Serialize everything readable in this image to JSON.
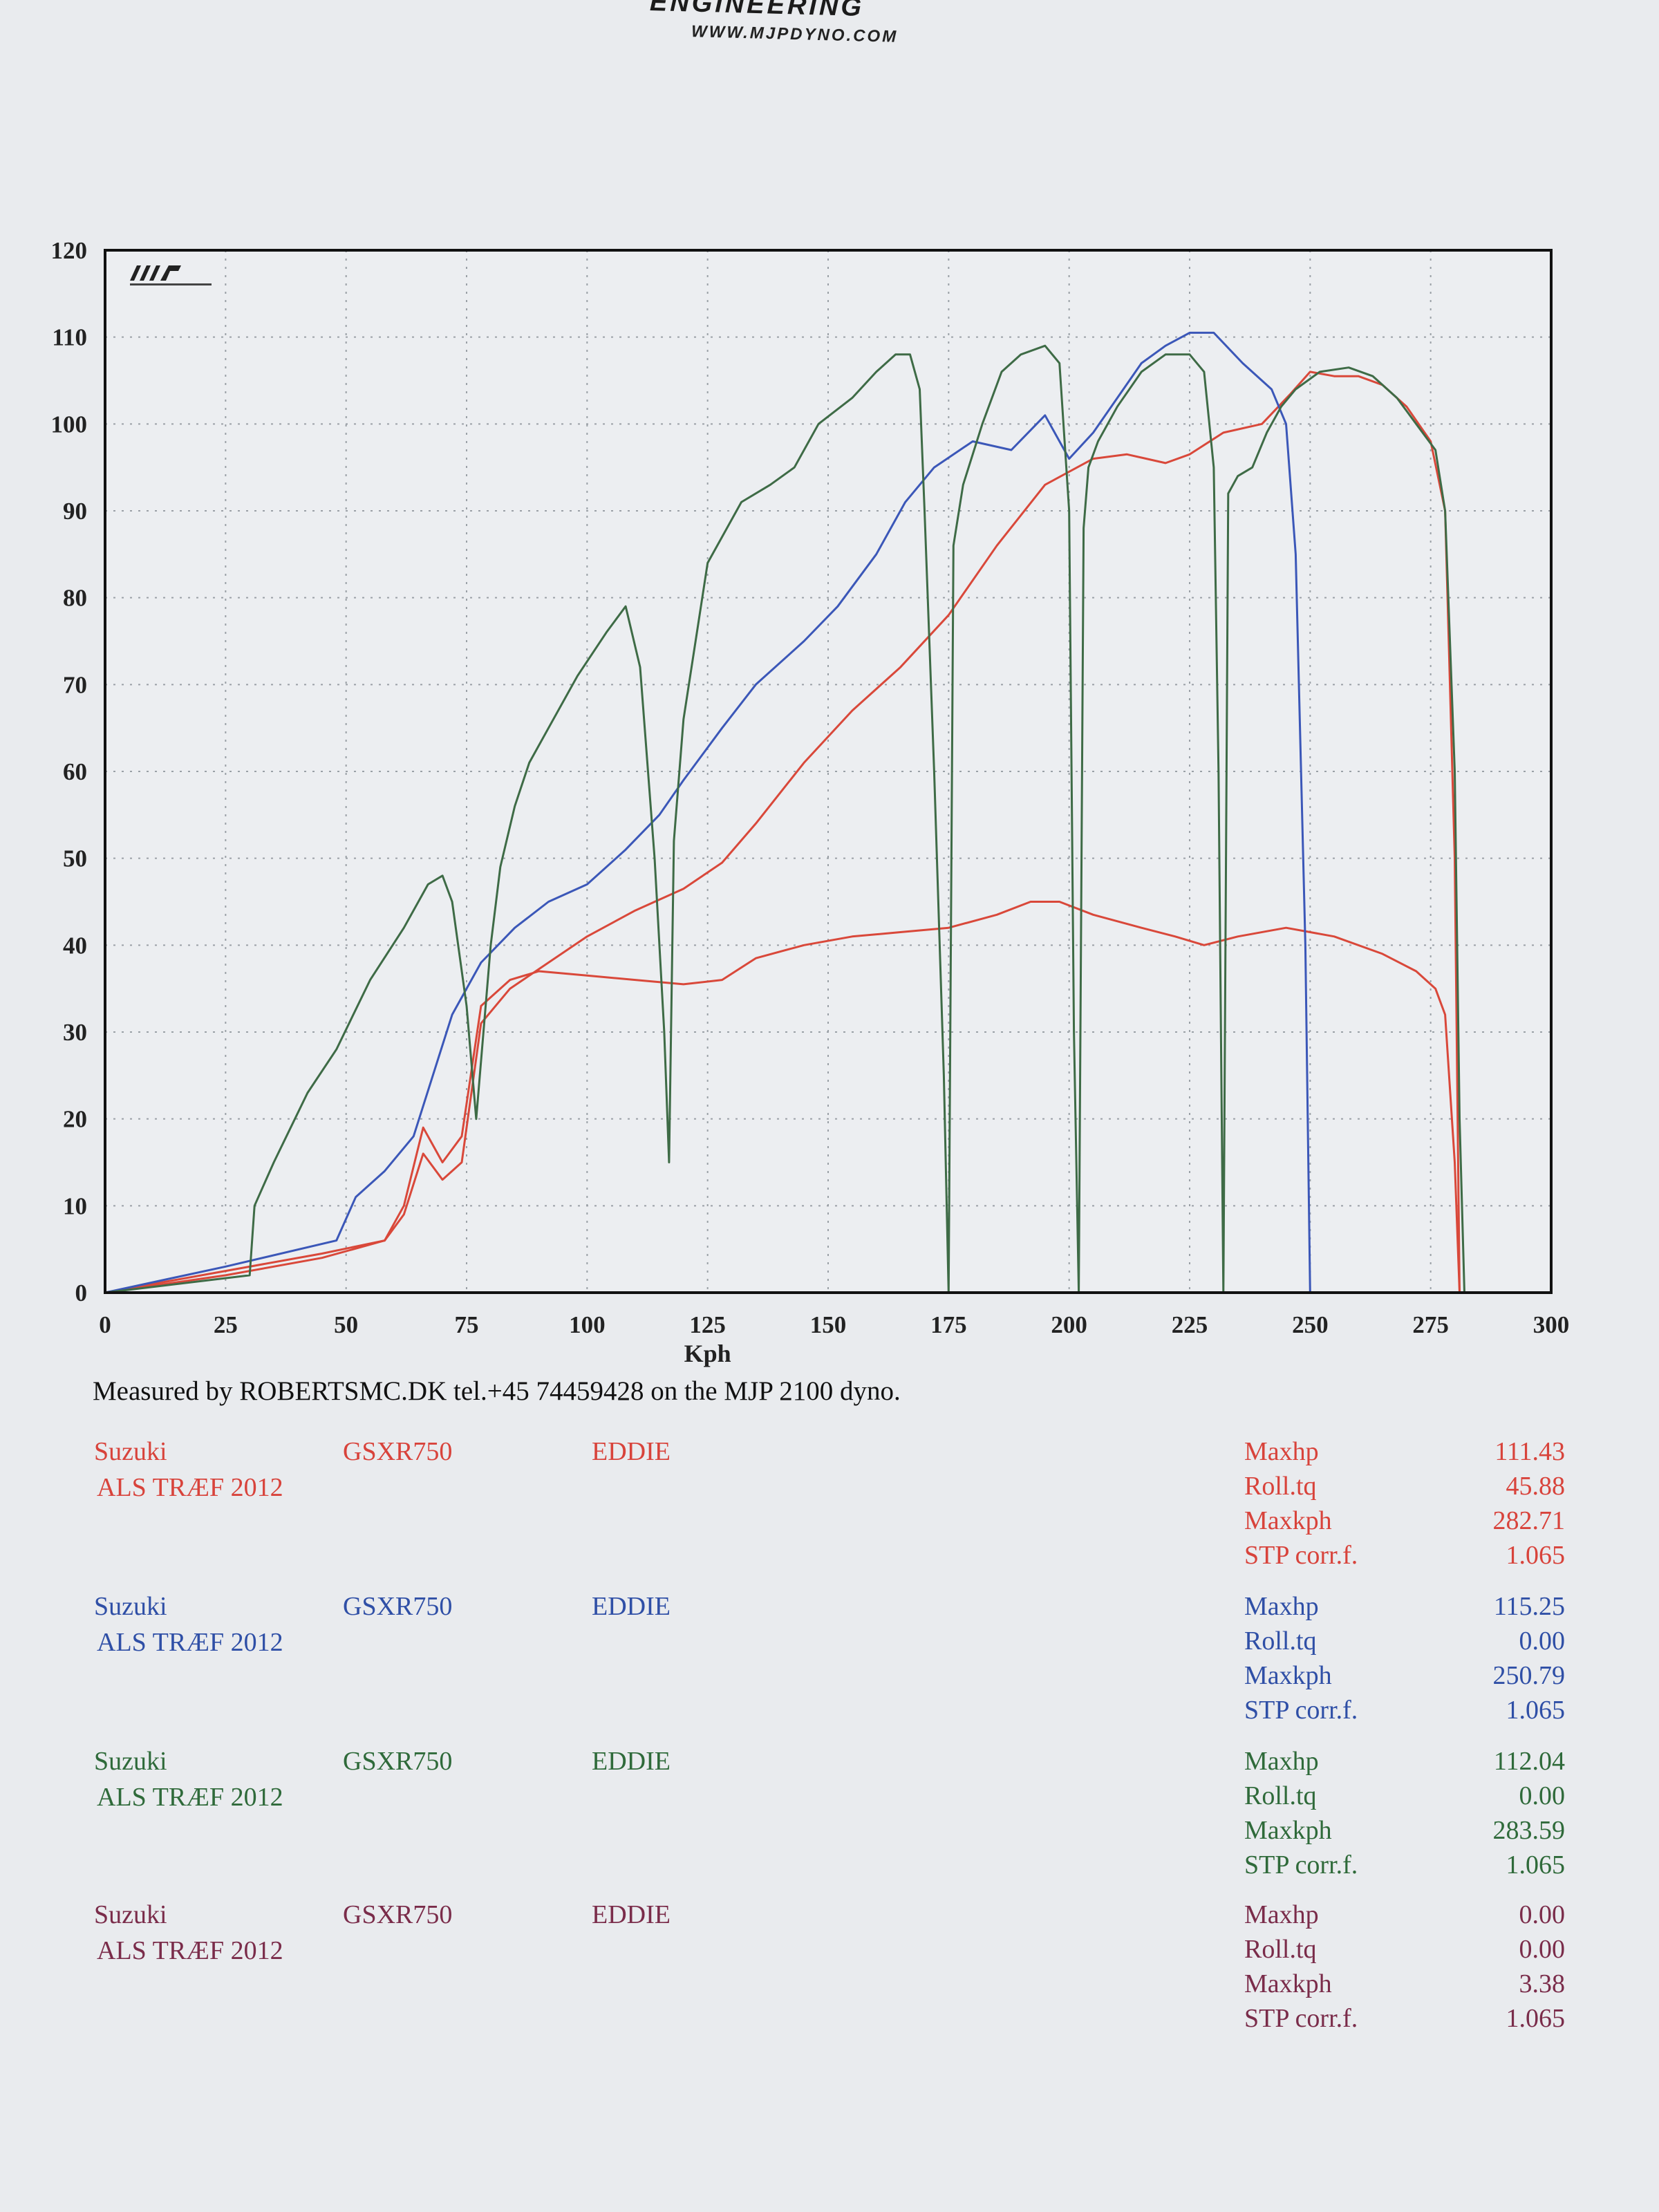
{
  "header": {
    "brand_fragment": "ENGINEERING",
    "url": "WWW.MJPDYNO.COM"
  },
  "chart_data": {
    "type": "line",
    "xlabel": "Kph",
    "ylabel": "",
    "xlim": [
      0,
      300
    ],
    "ylim": [
      0,
      120
    ],
    "xticks": [
      0,
      25,
      50,
      75,
      100,
      125,
      150,
      175,
      200,
      225,
      250,
      275,
      300
    ],
    "yticks": [
      0,
      10,
      20,
      30,
      40,
      50,
      60,
      70,
      80,
      90,
      100,
      110,
      120
    ],
    "grid": true,
    "series": [
      {
        "color": "#d9483a",
        "x": [
          0,
          25,
          45,
          58,
          62,
          66,
          70,
          74,
          78,
          84,
          90,
          100,
          110,
          120,
          128,
          135,
          145,
          155,
          165,
          175,
          185,
          192,
          198,
          205,
          215,
          222,
          228,
          235,
          245,
          255,
          265,
          272,
          276,
          278,
          280,
          281
        ],
        "y": [
          0,
          2.5,
          4.5,
          6,
          10,
          19,
          15,
          18,
          33,
          36,
          37,
          36.5,
          36,
          35.5,
          36,
          38.5,
          40,
          41,
          41.5,
          42,
          43.5,
          45,
          45,
          43.5,
          42,
          41,
          40,
          41,
          42,
          41,
          39,
          37,
          35,
          32,
          15,
          0
        ]
      },
      {
        "color": "#d9483a",
        "x": [
          0,
          25,
          45,
          58,
          62,
          66,
          70,
          74,
          78,
          84,
          92,
          100,
          110,
          120,
          128,
          135,
          145,
          155,
          165,
          175,
          185,
          195,
          205,
          212,
          220,
          225,
          232,
          240,
          246,
          250,
          255,
          260,
          265,
          270,
          275,
          278,
          280,
          281
        ],
        "y": [
          0,
          2,
          4,
          6,
          9,
          16,
          13,
          15,
          31,
          35,
          38,
          41,
          44,
          46.5,
          49.5,
          54,
          61,
          67,
          72,
          78,
          86,
          93,
          96,
          96.5,
          95.5,
          96.5,
          99,
          100,
          103.5,
          106,
          105.5,
          105.5,
          104.5,
          102,
          98,
          90,
          50,
          0
        ]
      },
      {
        "color": "#3b57b8",
        "x": [
          0,
          25,
          48,
          52,
          58,
          64,
          68,
          72,
          78,
          85,
          92,
          100,
          108,
          115,
          120,
          128,
          135,
          145,
          152,
          160,
          166,
          172,
          180,
          188,
          195,
          200,
          205,
          210,
          215,
          220,
          225,
          230,
          236,
          242,
          245,
          247,
          249,
          250
        ],
        "y": [
          0,
          3,
          6,
          11,
          14,
          18,
          25,
          32,
          38,
          42,
          45,
          47,
          51,
          55,
          59,
          65,
          70,
          75,
          79,
          85,
          91,
          95,
          98,
          97,
          101,
          96,
          99,
          103,
          107,
          109,
          110.5,
          110.5,
          107,
          104,
          100,
          85,
          40,
          0
        ]
      },
      {
        "color": "#3e6b46",
        "x": [
          0,
          30,
          31,
          35,
          42,
          48,
          55,
          62,
          67,
          70,
          72,
          75,
          77,
          80,
          82,
          85,
          88,
          92,
          98,
          104,
          108,
          111,
          114,
          116,
          117,
          118,
          120,
          125,
          132,
          138,
          143,
          148,
          155,
          160,
          164,
          167,
          169,
          170,
          172,
          174,
          175,
          176,
          178,
          182,
          186,
          190,
          195,
          198,
          200,
          201,
          202,
          203,
          204,
          206,
          210,
          215,
          220,
          225,
          228,
          230,
          231,
          232,
          233,
          235,
          238,
          241,
          244,
          247,
          252,
          258,
          263,
          268,
          272,
          276,
          278,
          280,
          281,
          282
        ],
        "y": [
          0,
          2,
          10,
          15,
          23,
          28,
          36,
          42,
          47,
          48,
          45,
          33,
          20,
          40,
          49,
          56,
          61,
          65,
          71,
          76,
          79,
          72,
          50,
          30,
          15,
          52,
          66,
          84,
          91,
          93,
          95,
          100,
          103,
          106,
          108,
          108,
          104,
          90,
          60,
          25,
          0,
          86,
          93,
          100,
          106,
          108,
          109,
          107,
          90,
          30,
          0,
          88,
          95,
          98,
          102,
          106,
          108,
          108,
          106,
          95,
          60,
          0,
          92,
          94,
          95,
          99,
          102,
          104,
          106,
          106.5,
          105.5,
          103,
          100,
          97,
          90,
          60,
          20,
          0
        ]
      }
    ]
  },
  "measured_text": "Measured by ROBERTSMC.DK tel.+45 74459428 on the MJP 2100 dyno.",
  "runs": [
    {
      "color": "#d8433b",
      "make": "Suzuki",
      "model": "GSXR750",
      "rider": "EDDIE",
      "event": "ALS TRÆF 2012",
      "stats": [
        {
          "label": "Maxhp",
          "value": "111.43"
        },
        {
          "label": "Roll.tq",
          "value": "45.88"
        },
        {
          "label": "Maxkph",
          "value": "282.71"
        },
        {
          "label": "STP corr.f.",
          "value": "1.065"
        }
      ]
    },
    {
      "color": "#2f4fa6",
      "make": "Suzuki",
      "model": "GSXR750",
      "rider": "EDDIE",
      "event": "ALS TRÆF 2012",
      "stats": [
        {
          "label": "Maxhp",
          "value": "115.25"
        },
        {
          "label": "Roll.tq",
          "value": "0.00"
        },
        {
          "label": "Maxkph",
          "value": "250.79"
        },
        {
          "label": "STP corr.f.",
          "value": "1.065"
        }
      ]
    },
    {
      "color": "#2f6a3a",
      "make": "Suzuki",
      "model": "GSXR750",
      "rider": "EDDIE",
      "event": "ALS TRÆF 2012",
      "stats": [
        {
          "label": "Maxhp",
          "value": "112.04"
        },
        {
          "label": "Roll.tq",
          "value": "0.00"
        },
        {
          "label": "Maxkph",
          "value": "283.59"
        },
        {
          "label": "STP corr.f.",
          "value": "1.065"
        }
      ]
    },
    {
      "color": "#7a2c4a",
      "make": "Suzuki",
      "model": "GSXR750",
      "rider": "EDDIE",
      "event": "ALS TRÆF 2012",
      "stats": [
        {
          "label": "Maxhp",
          "value": "0.00"
        },
        {
          "label": "Roll.tq",
          "value": "0.00"
        },
        {
          "label": "Maxkph",
          "value": "3.38"
        },
        {
          "label": "STP corr.f.",
          "value": "1.065"
        }
      ]
    }
  ]
}
